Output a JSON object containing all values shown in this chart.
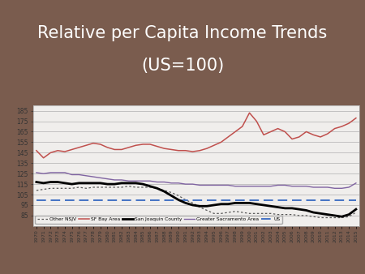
{
  "title_line1": "Relative per Capita Income Trends",
  "title_line2": "(US=100)",
  "title_fontsize": 15,
  "background_color": "#7a5c4e",
  "plot_bg_color": "#f0eeec",
  "years": [
    1970,
    1971,
    1972,
    1973,
    1974,
    1975,
    1976,
    1977,
    1978,
    1979,
    1980,
    1981,
    1982,
    1983,
    1984,
    1985,
    1986,
    1987,
    1988,
    1989,
    1990,
    1991,
    1992,
    1993,
    1994,
    1995,
    1996,
    1997,
    1998,
    1999,
    2000,
    2001,
    2002,
    2003,
    2004,
    2005,
    2006,
    2007,
    2008,
    2009,
    2010,
    2011,
    2012,
    2013,
    2014,
    2015
  ],
  "sf_bay": [
    147,
    140,
    145,
    147,
    146,
    148,
    150,
    152,
    154,
    153,
    150,
    148,
    148,
    150,
    152,
    153,
    153,
    151,
    149,
    148,
    147,
    147,
    146,
    147,
    149,
    152,
    155,
    160,
    165,
    170,
    183,
    175,
    162,
    165,
    168,
    165,
    158,
    160,
    165,
    162,
    160,
    163,
    168,
    170,
    173,
    178
  ],
  "san_joaquin": [
    117,
    116,
    117,
    117,
    116,
    115,
    116,
    116,
    116,
    116,
    115,
    115,
    116,
    116,
    116,
    115,
    113,
    111,
    108,
    104,
    100,
    97,
    95,
    94,
    94,
    95,
    96,
    96,
    97,
    97,
    97,
    96,
    95,
    94,
    93,
    92,
    92,
    91,
    90,
    88,
    87,
    86,
    85,
    84,
    86,
    91
  ],
  "greater_sac": [
    126,
    125,
    126,
    126,
    126,
    124,
    124,
    123,
    122,
    121,
    120,
    119,
    119,
    118,
    118,
    118,
    118,
    117,
    117,
    116,
    116,
    115,
    115,
    114,
    114,
    114,
    114,
    114,
    113,
    113,
    113,
    113,
    113,
    113,
    114,
    114,
    113,
    113,
    113,
    112,
    112,
    112,
    111,
    111,
    112,
    116
  ],
  "other_nsjv": [
    109,
    110,
    111,
    111,
    111,
    111,
    112,
    111,
    112,
    112,
    112,
    112,
    112,
    113,
    112,
    112,
    112,
    111,
    109,
    107,
    104,
    100,
    97,
    93,
    90,
    87,
    87,
    88,
    89,
    88,
    87,
    87,
    87,
    87,
    86,
    86,
    86,
    85,
    85,
    84,
    83,
    83,
    83,
    83,
    84,
    88
  ],
  "us": [
    100,
    100,
    100,
    100,
    100,
    100,
    100,
    100,
    100,
    100,
    100,
    100,
    100,
    100,
    100,
    100,
    100,
    100,
    100,
    100,
    100,
    100,
    100,
    100,
    100,
    100,
    100,
    100,
    100,
    100,
    100,
    100,
    100,
    100,
    100,
    100,
    100,
    100,
    100,
    100,
    100,
    100,
    100,
    100,
    100,
    100
  ],
  "ylim": [
    75,
    190
  ],
  "yticks": [
    85,
    95,
    105,
    115,
    125,
    135,
    145,
    155,
    165,
    175,
    185
  ],
  "sf_color": "#c0504d",
  "san_joaquin_color": "#000000",
  "greater_sac_color": "#8064a2",
  "other_nsjv_color": "#595959",
  "us_color": "#4472c4",
  "grid_color": "#b0b0b0",
  "accent_bar_orange": "#e36c09",
  "accent_bar_blue": "#7fa8c9"
}
